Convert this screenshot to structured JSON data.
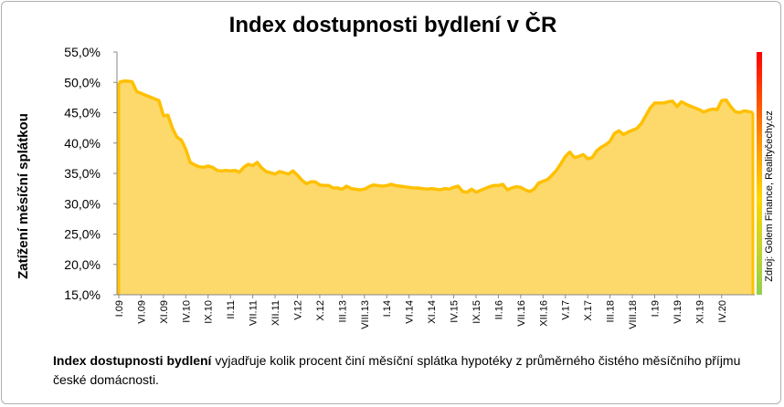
{
  "chart_data": {
    "type": "area",
    "title": "Index dostupnosti bydlení  v ČR",
    "ylabel": "Zatížení měsíční splátkou",
    "xlabel": "",
    "ylim": [
      15.0,
      55.0
    ],
    "y_ticks": [
      "15,0%",
      "20,0%",
      "25,0%",
      "30,0%",
      "35,0%",
      "40,0%",
      "45,0%",
      "50,0%",
      "55,0%"
    ],
    "x_ticks": [
      "I.09",
      "VI.09",
      "XI.09",
      "IV.10",
      "IX.10",
      "II.11",
      "VII.11",
      "XII.11",
      "V.12",
      "X.12",
      "III.13",
      "VIII.13",
      "I.14",
      "VI.14",
      "XI.14",
      "IV.15",
      "IX.15",
      "II.16",
      "VII.16",
      "XII.16",
      "V.17",
      "X.17",
      "III.18",
      "VIII.18",
      "I.19",
      "VI.19",
      "XI.19",
      "IV.20"
    ],
    "series": [
      {
        "name": "",
        "values": [
          50.0,
          50.2,
          50.2,
          50.1,
          48.5,
          48.2,
          47.9,
          47.6,
          47.3,
          47.0,
          44.5,
          44.6,
          42.5,
          41.0,
          40.5,
          39.0,
          36.8,
          36.4,
          36.1,
          36.0,
          36.2,
          36.0,
          35.5,
          35.4,
          35.5,
          35.4,
          35.5,
          35.2,
          36.0,
          36.5,
          36.3,
          36.8,
          35.9,
          35.3,
          35.1,
          34.9,
          35.3,
          35.1,
          34.9,
          35.4,
          34.7,
          33.9,
          33.3,
          33.6,
          33.6,
          33.1,
          33.0,
          33.0,
          32.6,
          32.6,
          32.4,
          32.9,
          32.5,
          32.4,
          32.3,
          32.4,
          32.8,
          33.1,
          33.0,
          32.9,
          33.0,
          33.2,
          33.0,
          32.9,
          32.8,
          32.7,
          32.6,
          32.6,
          32.5,
          32.4,
          32.5,
          32.4,
          32.3,
          32.5,
          32.4,
          32.7,
          32.9,
          32.0,
          31.9,
          32.4,
          31.9,
          32.2,
          32.5,
          32.8,
          33.0,
          33.0,
          33.2,
          32.3,
          32.6,
          32.8,
          32.7,
          32.3,
          32.0,
          32.4,
          33.4,
          33.7,
          34.0,
          34.7,
          35.5,
          36.6,
          37.8,
          38.5,
          37.6,
          37.8,
          38.1,
          37.4,
          37.6,
          38.7,
          39.3,
          39.7,
          40.3,
          41.6,
          42.0,
          41.4,
          41.8,
          42.1,
          42.4,
          43.2,
          44.5,
          45.8,
          46.6,
          46.6,
          46.6,
          46.8,
          46.9,
          46.0,
          46.8,
          46.4,
          46.1,
          45.8,
          45.5,
          45.1,
          45.4,
          45.6,
          45.5,
          47.0,
          47.1,
          46.0,
          45.2,
          45.0,
          45.3,
          45.2,
          45.0
        ]
      }
    ],
    "grid": false,
    "legend": "none",
    "colors": {
      "fill": "#fcd96a",
      "line": "#ffc000",
      "right_bar_top": "#ff0000",
      "right_bar_bottom": "#92d050"
    }
  },
  "source": "Zdroj: Golem Finance, Realityčechy.cz",
  "caption": {
    "bold": "Index dostupnosti bydlení",
    "text": " vyjadřuje kolik procent činí  měsíční splátka hypotéky z průměrného čistého měsíčního příjmu české domácnosti."
  }
}
